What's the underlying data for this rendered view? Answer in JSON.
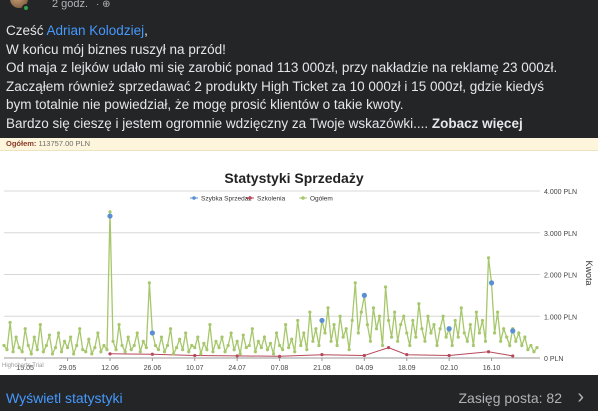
{
  "post": {
    "time": "2 godz.",
    "greeting": "Cześć ",
    "mention": "Adrian Kolodziej",
    "greeting_end": ",",
    "lines": [
      "W końcu mój biznes ruszył na przód!",
      "Od maja z lejków udało mi się zarobić ponad 113 000zł, przy nakładzie na reklamę 23 000zł.",
      "Zacząłem również sprzedawać 2 produkty High Ticket za 10 000zł i 15 000zł, gdzie kiedyś",
      "bym totalnie nie powiedział, że mogę prosić klientów o takie kwoty."
    ],
    "last_line": "Bardzo się cieszę i jestem ogromnie wdzięczny za Twoje wskazówki.... ",
    "see_more": "Zobacz więcej"
  },
  "chart_card": {
    "total_label": "Ogółem:",
    "total_value": "113757.00 PLN",
    "watermark": "Highcharts Trial"
  },
  "chart_data": {
    "type": "line",
    "title": "Statystyki Sprzedaży",
    "ylabel": "Kwota",
    "ylim": [
      0,
      4000
    ],
    "ytick_labels": [
      "0 PLN",
      "1.000 PLN",
      "2.000 PLN",
      "3.000 PLN",
      "4.000 PLN"
    ],
    "yticks": [
      0,
      1000,
      2000,
      3000,
      4000
    ],
    "xtick_labels": [
      "15.05",
      "29.05",
      "12.06",
      "26.06",
      "10.07",
      "24.07",
      "07.08",
      "21.08",
      "04.09",
      "18.09",
      "02.10",
      "16.10"
    ],
    "xticks": [
      7,
      21,
      35,
      49,
      63,
      77,
      91,
      105,
      119,
      133,
      147,
      161
    ],
    "legend_position": "top-center",
    "colors": {
      "szybka": "#5b8fd4",
      "szkolenia": "#b5485a",
      "ogolem": "#a6c76b"
    },
    "series": [
      {
        "name": "Szybka Sprzedaż",
        "points": [
          [
            35,
            3400
          ],
          [
            49,
            600
          ],
          [
            105,
            900
          ],
          [
            119,
            1500
          ],
          [
            147,
            700
          ],
          [
            161,
            1800
          ],
          [
            168,
            650
          ]
        ]
      },
      {
        "name": "Szkolenia",
        "points": [
          [
            35,
            100
          ],
          [
            49,
            90
          ],
          [
            63,
            60
          ],
          [
            77,
            50
          ],
          [
            91,
            40
          ],
          [
            105,
            80
          ],
          [
            119,
            60
          ],
          [
            127,
            250
          ],
          [
            133,
            80
          ],
          [
            147,
            60
          ],
          [
            160,
            150
          ],
          [
            168,
            50
          ]
        ]
      },
      {
        "name": "Ogółem",
        "points": [
          [
            0,
            300
          ],
          [
            1,
            200
          ],
          [
            2,
            850
          ],
          [
            3,
            150
          ],
          [
            4,
            500
          ],
          [
            5,
            250
          ],
          [
            6,
            150
          ],
          [
            7,
            700
          ],
          [
            8,
            300
          ],
          [
            9,
            100
          ],
          [
            10,
            500
          ],
          [
            11,
            200
          ],
          [
            12,
            800
          ],
          [
            13,
            150
          ],
          [
            14,
            300
          ],
          [
            15,
            550
          ],
          [
            16,
            100
          ],
          [
            17,
            250
          ],
          [
            18,
            600
          ],
          [
            19,
            150
          ],
          [
            20,
            400
          ],
          [
            21,
            250
          ],
          [
            22,
            500
          ],
          [
            23,
            100
          ],
          [
            24,
            300
          ],
          [
            25,
            700
          ],
          [
            26,
            200
          ],
          [
            27,
            150
          ],
          [
            28,
            450
          ],
          [
            29,
            100
          ],
          [
            30,
            250
          ],
          [
            31,
            600
          ],
          [
            32,
            150
          ],
          [
            33,
            300
          ],
          [
            34,
            200
          ],
          [
            35,
            3500
          ],
          [
            36,
            400
          ],
          [
            37,
            200
          ],
          [
            38,
            800
          ],
          [
            39,
            300
          ],
          [
            40,
            150
          ],
          [
            41,
            500
          ],
          [
            42,
            200
          ],
          [
            43,
            300
          ],
          [
            44,
            600
          ],
          [
            45,
            150
          ],
          [
            46,
            400
          ],
          [
            47,
            250
          ],
          [
            48,
            1800
          ],
          [
            49,
            600
          ],
          [
            50,
            300
          ],
          [
            51,
            200
          ],
          [
            52,
            500
          ],
          [
            53,
            150
          ],
          [
            54,
            300
          ],
          [
            55,
            700
          ],
          [
            56,
            100
          ],
          [
            57,
            250
          ],
          [
            58,
            450
          ],
          [
            59,
            200
          ],
          [
            60,
            600
          ],
          [
            61,
            150
          ],
          [
            62,
            300
          ],
          [
            63,
            250
          ],
          [
            64,
            500
          ],
          [
            65,
            100
          ],
          [
            66,
            350
          ],
          [
            67,
            200
          ],
          [
            68,
            800
          ],
          [
            69,
            150
          ],
          [
            70,
            400
          ],
          [
            71,
            250
          ],
          [
            72,
            500
          ],
          [
            73,
            150
          ],
          [
            74,
            300
          ],
          [
            75,
            600
          ],
          [
            76,
            200
          ],
          [
            77,
            400
          ],
          [
            78,
            100
          ],
          [
            79,
            550
          ],
          [
            80,
            250
          ],
          [
            81,
            300
          ],
          [
            82,
            700
          ],
          [
            83,
            150
          ],
          [
            84,
            400
          ],
          [
            85,
            250
          ],
          [
            86,
            500
          ],
          [
            87,
            200
          ],
          [
            88,
            350
          ],
          [
            89,
            100
          ],
          [
            90,
            600
          ],
          [
            91,
            300
          ],
          [
            92,
            200
          ],
          [
            93,
            800
          ],
          [
            94,
            250
          ],
          [
            95,
            450
          ],
          [
            96,
            150
          ],
          [
            97,
            900
          ],
          [
            98,
            300
          ],
          [
            99,
            600
          ],
          [
            100,
            200
          ],
          [
            101,
            1100
          ],
          [
            102,
            400
          ],
          [
            103,
            700
          ],
          [
            104,
            300
          ],
          [
            105,
            900
          ],
          [
            106,
            600
          ],
          [
            107,
            1200
          ],
          [
            108,
            400
          ],
          [
            109,
            800
          ],
          [
            110,
            300
          ],
          [
            111,
            1000
          ],
          [
            112,
            500
          ],
          [
            113,
            700
          ],
          [
            114,
            200
          ],
          [
            115,
            900
          ],
          [
            116,
            1800
          ],
          [
            117,
            600
          ],
          [
            118,
            1100
          ],
          [
            119,
            1500
          ],
          [
            120,
            800
          ],
          [
            121,
            400
          ],
          [
            122,
            1200
          ],
          [
            123,
            700
          ],
          [
            124,
            1000
          ],
          [
            125,
            300
          ],
          [
            126,
            1700
          ],
          [
            127,
            900
          ],
          [
            128,
            500
          ],
          [
            129,
            1100
          ],
          [
            130,
            400
          ],
          [
            131,
            800
          ],
          [
            132,
            1000
          ],
          [
            133,
            600
          ],
          [
            134,
            300
          ],
          [
            135,
            900
          ],
          [
            136,
            500
          ],
          [
            137,
            1300
          ],
          [
            138,
            700
          ],
          [
            139,
            400
          ],
          [
            140,
            1000
          ],
          [
            141,
            600
          ],
          [
            142,
            800
          ],
          [
            143,
            300
          ],
          [
            144,
            700
          ],
          [
            145,
            1000
          ],
          [
            146,
            500
          ],
          [
            147,
            700
          ],
          [
            148,
            300
          ],
          [
            149,
            900
          ],
          [
            150,
            500
          ],
          [
            151,
            1200
          ],
          [
            152,
            600
          ],
          [
            153,
            400
          ],
          [
            154,
            800
          ],
          [
            155,
            300
          ],
          [
            156,
            1100
          ],
          [
            157,
            600
          ],
          [
            158,
            900
          ],
          [
            159,
            400
          ],
          [
            160,
            2400
          ],
          [
            161,
            1800
          ],
          [
            162,
            600
          ],
          [
            163,
            1100
          ],
          [
            164,
            400
          ],
          [
            165,
            700
          ],
          [
            166,
            500
          ],
          [
            167,
            300
          ],
          [
            168,
            700
          ],
          [
            169,
            400
          ],
          [
            170,
            600
          ],
          [
            171,
            300
          ],
          [
            172,
            500
          ],
          [
            173,
            200
          ],
          [
            174,
            300
          ],
          [
            175,
            150
          ],
          [
            176,
            250
          ]
        ]
      }
    ],
    "xlim": [
      0,
      177
    ]
  },
  "footer": {
    "stats_link": "Wyświetl statystyki",
    "reach": "Zasięg posta: 82",
    "chevron": "›"
  }
}
